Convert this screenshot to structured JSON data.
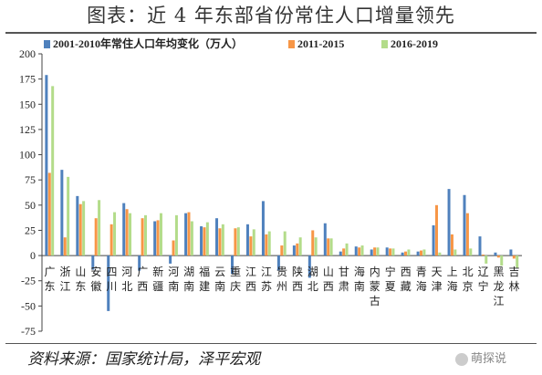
{
  "title": "图表：近 4 年东部省份常住人口增量领先",
  "source": "资料来源：国家统计局，泽平宏观",
  "watermark": "萌探说",
  "colors": {
    "s1": "#4f81bd",
    "s2": "#f79646",
    "s3": "#b3dc8a",
    "axis": "#444444"
  },
  "chart_data": {
    "type": "bar",
    "ylim": [
      -75,
      200
    ],
    "yticks": [
      -75,
      -50,
      -25,
      0,
      25,
      50,
      75,
      100,
      125,
      150,
      175,
      200
    ],
    "legend_position": "top",
    "categories": [
      [
        "广",
        "东"
      ],
      [
        "浙",
        "江"
      ],
      [
        "山",
        "东"
      ],
      [
        "安",
        "徽"
      ],
      [
        "四",
        "川"
      ],
      [
        "河",
        "北"
      ],
      [
        "广",
        "西"
      ],
      [
        "新",
        "疆"
      ],
      [
        "河",
        "南"
      ],
      [
        "湖",
        "南"
      ],
      [
        "福",
        "建"
      ],
      [
        "云",
        "南"
      ],
      [
        "重",
        "庆"
      ],
      [
        "江",
        "西"
      ],
      [
        "江",
        "苏"
      ],
      [
        "贵",
        "州"
      ],
      [
        "陕",
        "西"
      ],
      [
        "湖",
        "北"
      ],
      [
        "山",
        "西"
      ],
      [
        "甘",
        "肃"
      ],
      [
        "海",
        "南"
      ],
      [
        "内",
        "蒙",
        "古"
      ],
      [
        "宁",
        "夏"
      ],
      [
        "西",
        "藏"
      ],
      [
        "青",
        "海"
      ],
      [
        "天",
        "津"
      ],
      [
        "上",
        "海"
      ],
      [
        "北",
        "京"
      ],
      [
        "辽",
        "宁"
      ],
      [
        "黑",
        "龙",
        "江"
      ],
      [
        "吉",
        "林"
      ]
    ],
    "series": [
      {
        "name": "2001-2010年常住人口年均变化（万人）",
        "values": [
          179,
          85,
          59,
          -14,
          -55,
          52,
          -15,
          34,
          -8,
          42,
          29,
          37,
          -18,
          31,
          54,
          -15,
          10,
          -22,
          32,
          4,
          9,
          6,
          8,
          3,
          4,
          30,
          66,
          60,
          19,
          3,
          6
        ]
      },
      {
        "name": "2011-2015",
        "values": [
          82,
          18,
          51,
          37,
          31,
          46,
          37,
          35,
          15,
          43,
          28,
          27,
          27,
          19,
          21,
          10,
          12,
          25,
          17,
          7,
          8,
          8,
          7,
          4,
          5,
          50,
          21,
          42,
          1,
          -2,
          -3
        ]
      },
      {
        "name": "2016-2019",
        "values": [
          168,
          78,
          54,
          55,
          43,
          42,
          40,
          42,
          40,
          34,
          33,
          31,
          28,
          26,
          24,
          24,
          18,
          18,
          17,
          12,
          10,
          8,
          7,
          6,
          6,
          3,
          6,
          7,
          -8,
          -10,
          -12
        ]
      }
    ]
  }
}
